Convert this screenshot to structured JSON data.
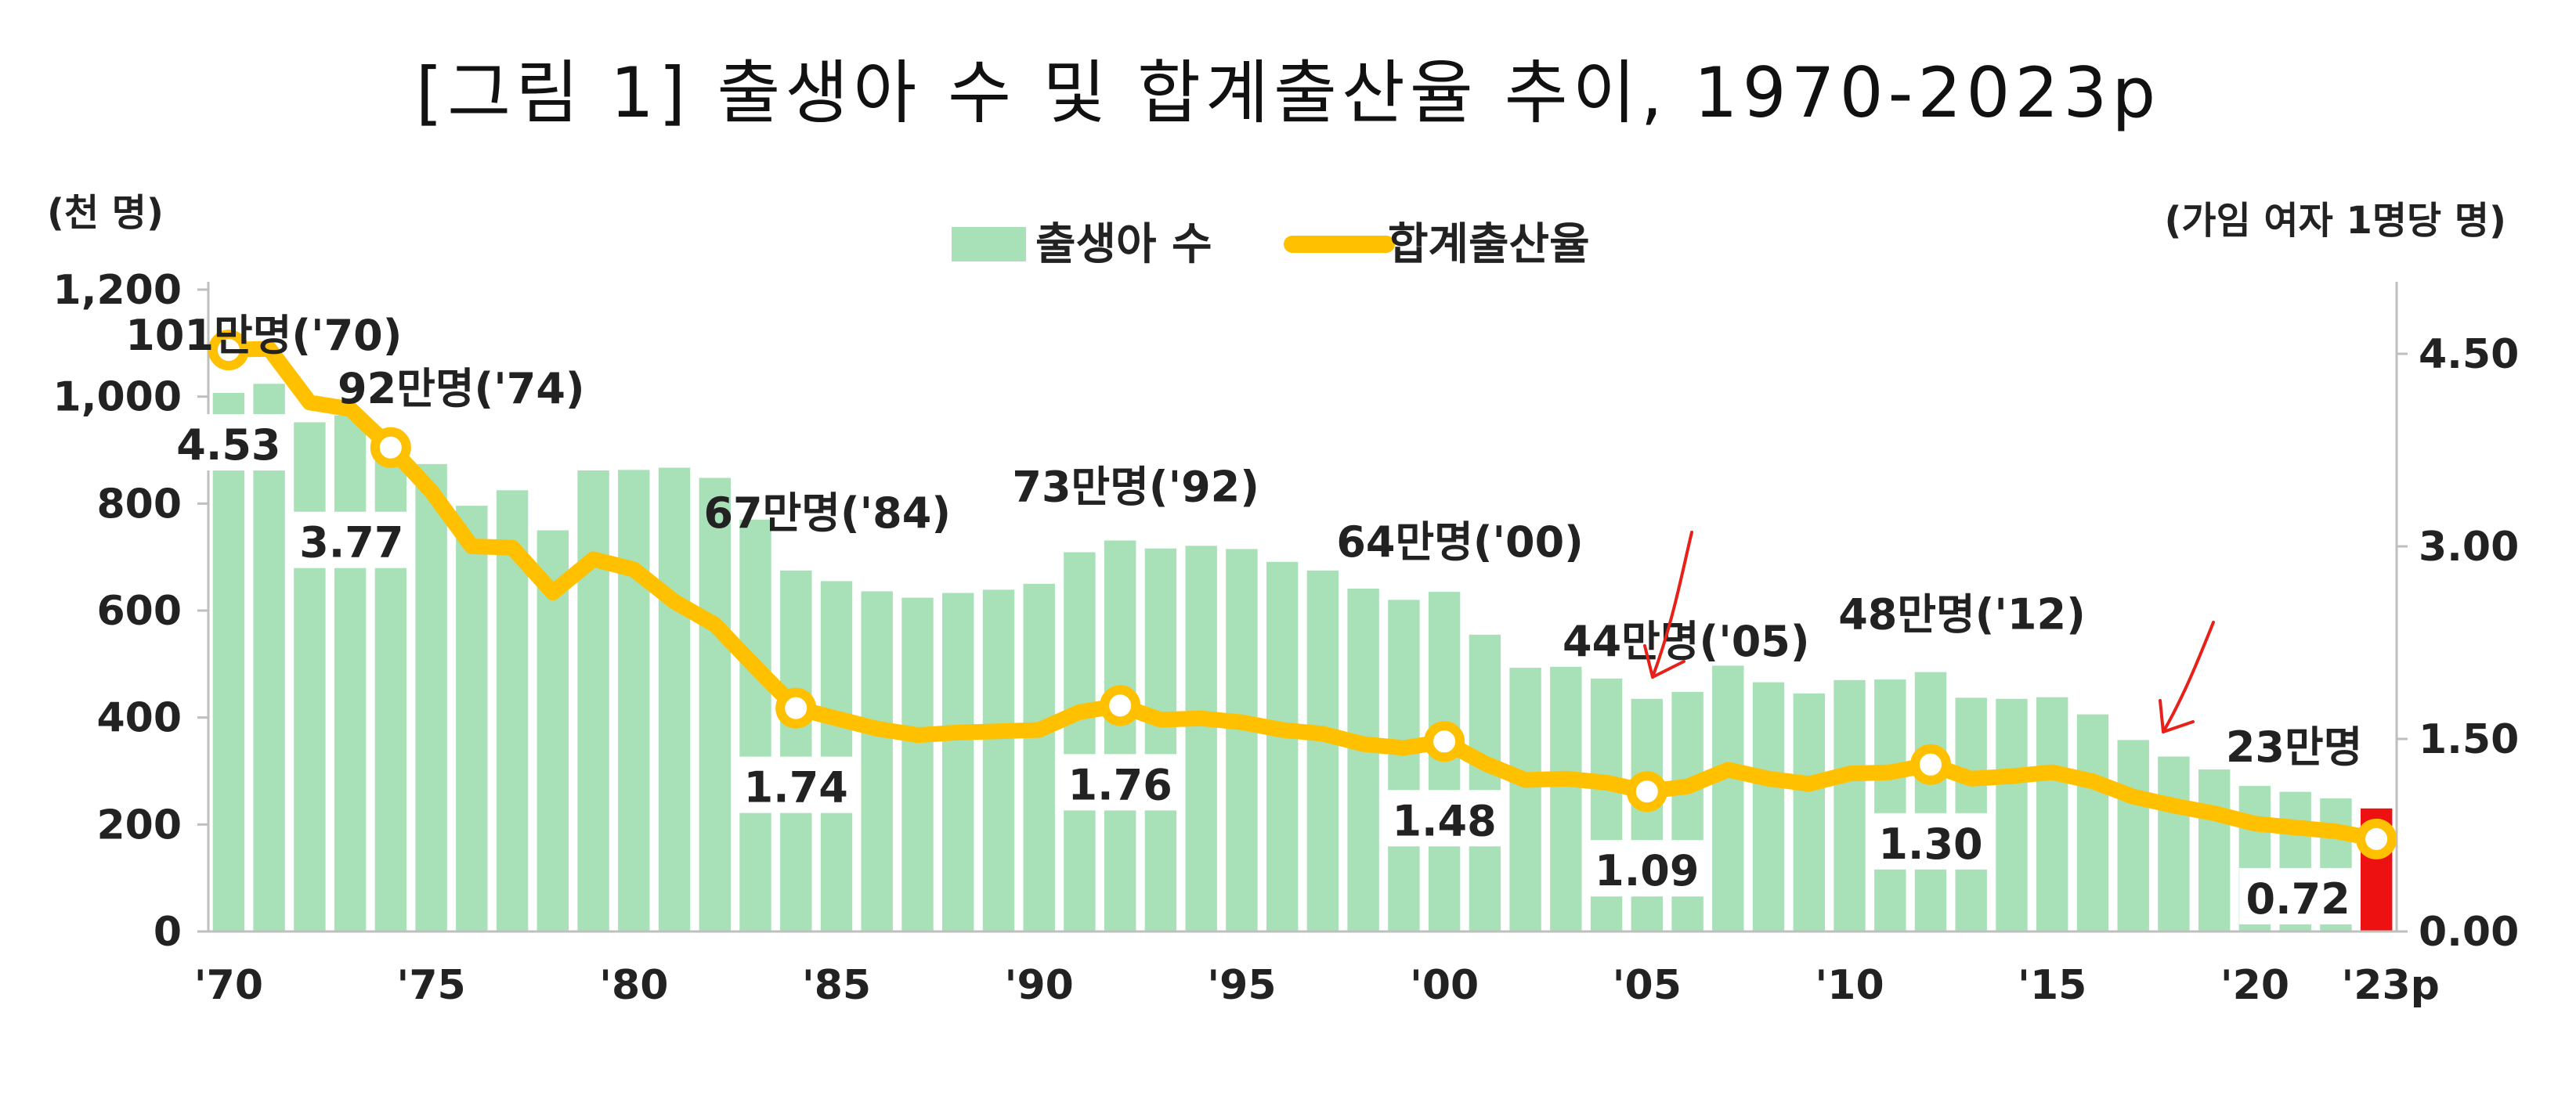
{
  "chart_data": {
    "type": "bar+line",
    "title": "[그림 1] 출생아 수 및 합계출산율 추이, 1970-2023p",
    "left_axis_unit": "(천 명)",
    "right_axis_unit": "(가임 여자 1명당 명)",
    "y_left": {
      "min": 0,
      "max": 1200,
      "ticks": [
        "0",
        "200",
        "400",
        "600",
        "800",
        "1,000",
        "1,200"
      ]
    },
    "y_right": {
      "min": 0,
      "max": 5.0,
      "ticks": [
        "0.00",
        "1.50",
        "3.00",
        "4.50"
      ]
    },
    "x_tick_labels": [
      {
        "year": 1970,
        "label": "'70"
      },
      {
        "year": 1975,
        "label": "'75"
      },
      {
        "year": 1980,
        "label": "'80"
      },
      {
        "year": 1985,
        "label": "'85"
      },
      {
        "year": 1990,
        "label": "'90"
      },
      {
        "year": 1995,
        "label": "'95"
      },
      {
        "year": 2000,
        "label": "'00"
      },
      {
        "year": 2005,
        "label": "'05"
      },
      {
        "year": 2010,
        "label": "'10"
      },
      {
        "year": 2015,
        "label": "'15"
      },
      {
        "year": 2020,
        "label": "'20"
      },
      {
        "year": 2023,
        "label": "'23p"
      }
    ],
    "years": [
      1970,
      1971,
      1972,
      1973,
      1974,
      1975,
      1976,
      1977,
      1978,
      1979,
      1980,
      1981,
      1982,
      1983,
      1984,
      1985,
      1986,
      1987,
      1988,
      1989,
      1990,
      1991,
      1992,
      1993,
      1994,
      1995,
      1996,
      1997,
      1998,
      1999,
      2000,
      2001,
      2002,
      2003,
      2004,
      2005,
      2006,
      2007,
      2008,
      2009,
      2010,
      2011,
      2012,
      2013,
      2014,
      2015,
      2016,
      2017,
      2018,
      2019,
      2020,
      2021,
      2022,
      2023
    ],
    "series": [
      {
        "name": "출생아 수",
        "type": "bar",
        "axis": "left",
        "color": "#a8e0b8",
        "highlight_color": "#ee1111",
        "highlight_year": 2023,
        "values": [
          1007,
          1024,
          952,
          965,
          922,
          874,
          796,
          825,
          750,
          862,
          863,
          867,
          848,
          770,
          675,
          655,
          636,
          624,
          633,
          639,
          650,
          709,
          731,
          716,
          721,
          715,
          691,
          675,
          641,
          620,
          635,
          555,
          493,
          495,
          473,
          435,
          448,
          497,
          466,
          445,
          470,
          471,
          485,
          437,
          435,
          438,
          406,
          358,
          327,
          303,
          272,
          261,
          249,
          230
        ]
      },
      {
        "name": "합계출산율",
        "type": "line",
        "axis": "right",
        "color": "#ffc000",
        "values": [
          4.53,
          4.54,
          4.12,
          4.07,
          3.77,
          3.43,
          3.0,
          2.99,
          2.64,
          2.9,
          2.82,
          2.57,
          2.39,
          2.06,
          1.74,
          1.66,
          1.58,
          1.53,
          1.55,
          1.56,
          1.57,
          1.71,
          1.76,
          1.65,
          1.66,
          1.63,
          1.57,
          1.54,
          1.46,
          1.43,
          1.48,
          1.31,
          1.18,
          1.19,
          1.16,
          1.09,
          1.13,
          1.26,
          1.19,
          1.15,
          1.23,
          1.24,
          1.3,
          1.19,
          1.21,
          1.24,
          1.17,
          1.05,
          0.98,
          0.92,
          0.84,
          0.81,
          0.78,
          0.72
        ],
        "marked_years": [
          1970,
          1974,
          1984,
          1992,
          2000,
          2005,
          2012,
          2023
        ]
      }
    ],
    "rate_labels": [
      {
        "year": 1970,
        "text": "4.53"
      },
      {
        "year": 1974,
        "text": "3.77"
      },
      {
        "year": 1984,
        "text": "1.74"
      },
      {
        "year": 1992,
        "text": "1.76"
      },
      {
        "year": 2000,
        "text": "1.48"
      },
      {
        "year": 2005,
        "text": "1.09"
      },
      {
        "year": 2012,
        "text": "1.30"
      },
      {
        "year": 2023,
        "text": "0.72"
      }
    ],
    "birth_annotations": [
      {
        "year": 1970,
        "text": "101만명('70)"
      },
      {
        "year": 1974,
        "text": "92만명('74)"
      },
      {
        "year": 1984,
        "text": "67만명('84)"
      },
      {
        "year": 1992,
        "text": "73만명('92)"
      },
      {
        "year": 2000,
        "text": "64만명('00)"
      },
      {
        "year": 2005,
        "text": "44만명('05)"
      },
      {
        "year": 2012,
        "text": "48만명('12)"
      },
      {
        "year": 2023,
        "text": "23만명"
      }
    ],
    "legend": {
      "position": "top-center",
      "items": [
        "출생아 수",
        "합계출산율"
      ]
    },
    "grid": false
  }
}
